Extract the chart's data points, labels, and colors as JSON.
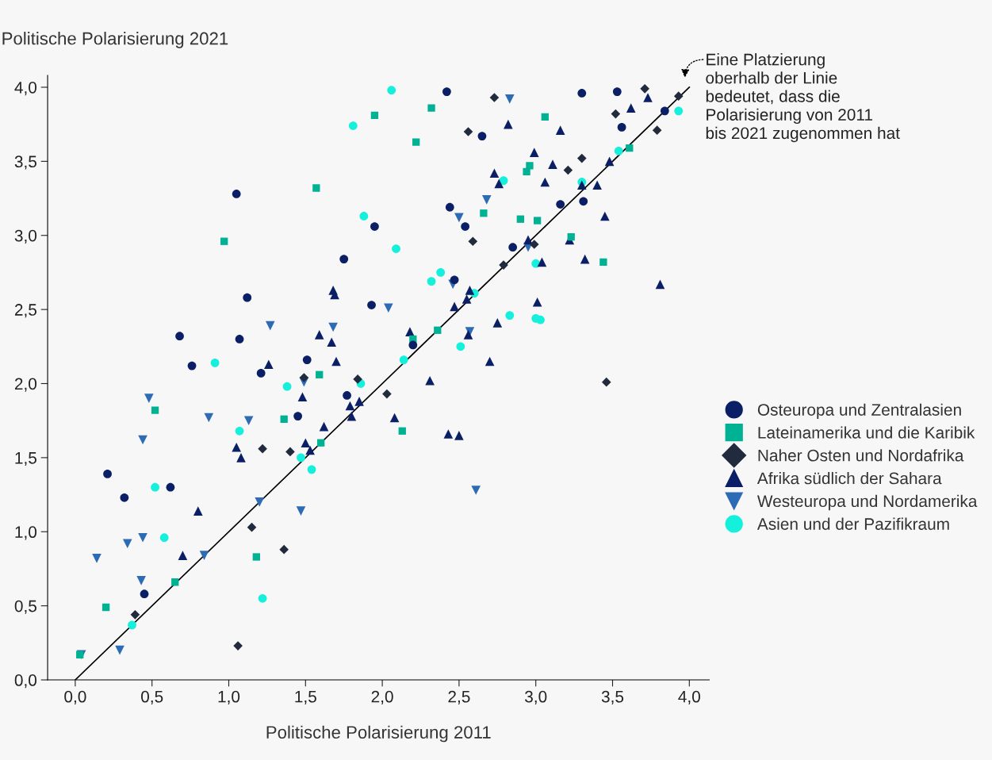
{
  "chart_data": {
    "type": "scatter",
    "xlabel": "Politische Polarisierung 2011",
    "ylabel": "Politische Polarisierung 2021",
    "xlim": [
      -0.18,
      4.13
    ],
    "ylim": [
      0,
      4.08
    ],
    "xticks": [
      {
        "value": 0,
        "label": "0,0"
      },
      {
        "value": 0.5,
        "label": "0,5"
      },
      {
        "value": 1,
        "label": "1,0"
      },
      {
        "value": 1.5,
        "label": "1,5"
      },
      {
        "value": 2,
        "label": "2,0"
      },
      {
        "value": 2.5,
        "label": "2,5"
      },
      {
        "value": 3,
        "label": "3,0"
      },
      {
        "value": 3.5,
        "label": "3,5"
      },
      {
        "value": 4,
        "label": "4,0"
      }
    ],
    "yticks": [
      {
        "value": 0,
        "label": "0,0"
      },
      {
        "value": 0.5,
        "label": "0,5"
      },
      {
        "value": 1,
        "label": "1,0"
      },
      {
        "value": 1.5,
        "label": "1,5"
      },
      {
        "value": 2,
        "label": "2,0"
      },
      {
        "value": 2.5,
        "label": "2,5"
      },
      {
        "value": 3,
        "label": "3,0"
      },
      {
        "value": 3.5,
        "label": "3,5"
      },
      {
        "value": 4,
        "label": "4,0"
      }
    ],
    "grid": false,
    "legend": "right",
    "annotations": [
      "Eine Platzierung\noberhalb der Linie\nbedeutet, dass die\nPolarisierung von 2011\nbis 2021 zugenommen hat"
    ],
    "series": [
      {
        "name": "Osteuropa und Zentralasien",
        "color": "#0b1f66",
        "marker": "circle",
        "x": [
          2.42,
          3.3,
          3.53,
          3.84,
          3.56,
          2.65,
          1.05,
          2.44,
          3.16,
          3.31,
          2.54,
          1.95,
          2.85,
          1.75,
          2.47,
          1.12,
          1.93,
          0.68,
          1.07,
          2.2,
          0.76,
          1.51,
          1.21,
          1.77,
          1.45,
          0.21,
          0.32,
          0.62,
          0.45
        ],
        "values": [
          3.97,
          3.96,
          3.97,
          3.84,
          3.73,
          3.67,
          3.28,
          3.19,
          3.21,
          3.23,
          3.06,
          3.06,
          2.92,
          2.84,
          2.7,
          2.58,
          2.53,
          2.32,
          2.3,
          2.26,
          2.12,
          2.16,
          2.07,
          1.92,
          1.78,
          1.39,
          1.23,
          1.3,
          0.58
        ]
      },
      {
        "name": "Lateinamerika und die Karibik",
        "color": "#00b294",
        "marker": "square",
        "x": [
          2.32,
          1.95,
          2.22,
          3.06,
          1.57,
          2.96,
          2.94,
          0.97,
          2.66,
          2.9,
          3.01,
          3.23,
          3.44,
          2.36,
          2.2,
          1.59,
          1.36,
          0.52,
          2.13,
          1.6,
          1.18,
          0.65,
          0.2,
          0.03,
          3.61
        ],
        "values": [
          3.86,
          3.81,
          3.63,
          3.8,
          3.32,
          3.47,
          3.43,
          2.96,
          3.15,
          3.11,
          3.1,
          2.99,
          2.82,
          2.36,
          2.3,
          2.06,
          1.76,
          1.82,
          1.68,
          1.6,
          0.83,
          0.66,
          0.49,
          0.17,
          3.59
        ]
      },
      {
        "name": "Naher Osten und Nordafrika",
        "color": "#222a3d",
        "marker": "diamond",
        "x": [
          2.73,
          3.71,
          3.93,
          3.52,
          2.56,
          3.79,
          3.3,
          3.21,
          2.59,
          2.79,
          2.99,
          1.84,
          1.49,
          2.03,
          1.22,
          1.4,
          1.15,
          1.36,
          0.39,
          1.06,
          3.46
        ],
        "values": [
          3.93,
          3.99,
          3.94,
          3.82,
          3.7,
          3.71,
          3.52,
          3.44,
          2.96,
          2.8,
          2.94,
          2.03,
          2.04,
          1.93,
          1.56,
          1.54,
          1.03,
          0.88,
          0.44,
          0.23,
          2.01
        ]
      },
      {
        "name": "Afrika südlich der Sahara",
        "color": "#0b1f66",
        "marker": "triangle",
        "x": [
          3.73,
          3.62,
          2.82,
          3.16,
          2.99,
          3.11,
          2.73,
          2.76,
          3.06,
          3.48,
          3.4,
          3.3,
          3.45,
          2.95,
          3.22,
          3.04,
          3.32,
          3.01,
          3.81,
          2.57,
          2.55,
          2.47,
          2.56,
          2.75,
          2.7,
          1.68,
          1.69,
          1.59,
          1.67,
          1.7,
          1.26,
          2.18,
          2.31,
          2.08,
          1.48,
          1.79,
          1.85,
          1.8,
          1.62,
          1.05,
          1.08,
          1.5,
          1.53,
          2.43,
          2.5,
          0.8,
          0.7
        ],
        "values": [
          3.93,
          3.86,
          3.75,
          3.71,
          3.56,
          3.48,
          3.42,
          3.35,
          3.36,
          3.5,
          3.34,
          3.34,
          3.13,
          2.97,
          2.97,
          2.82,
          2.84,
          2.55,
          2.67,
          2.63,
          2.57,
          2.52,
          2.33,
          2.41,
          2.15,
          2.63,
          2.6,
          2.33,
          2.28,
          2.15,
          2.13,
          2.35,
          2.02,
          1.77,
          1.91,
          1.85,
          1.88,
          1.78,
          1.71,
          1.57,
          1.5,
          1.6,
          1.55,
          1.66,
          1.65,
          1.14,
          0.84
        ]
      },
      {
        "name": "Westeuropa und Nordamerika",
        "color": "#2e6bb5",
        "marker": "triangle_down",
        "x": [
          2.83,
          2.68,
          2.5,
          2.95,
          2.46,
          2.04,
          1.27,
          1.68,
          2.57,
          1.49,
          0.48,
          0.87,
          1.13,
          0.44,
          1.2,
          1.47,
          0.34,
          0.44,
          0.14,
          0.43,
          0.29,
          2.61,
          0.84,
          0.04
        ],
        "values": [
          3.92,
          3.24,
          3.12,
          2.92,
          2.67,
          2.51,
          2.39,
          2.38,
          2.35,
          2.01,
          1.9,
          1.77,
          1.75,
          1.62,
          1.2,
          1.14,
          0.92,
          0.96,
          0.82,
          0.67,
          0.2,
          1.28,
          0.84,
          0.17
        ]
      },
      {
        "name": "Asien und der Pazifikraum",
        "color": "#14f0dc",
        "marker": "circle",
        "x": [
          2.06,
          1.81,
          3.93,
          3.54,
          2.79,
          3.3,
          1.88,
          2.09,
          3.0,
          2.38,
          2.32,
          2.6,
          2.83,
          3.0,
          3.03,
          2.51,
          2.14,
          1.86,
          0.91,
          1.38,
          1.07,
          0.52,
          0.58,
          1.47,
          1.54,
          1.22,
          0.37
        ],
        "values": [
          3.98,
          3.74,
          3.84,
          3.57,
          3.37,
          3.36,
          3.13,
          2.91,
          2.81,
          2.75,
          2.69,
          2.61,
          2.46,
          2.44,
          2.43,
          2.25,
          2.16,
          2.0,
          2.14,
          1.98,
          1.68,
          1.3,
          0.96,
          1.5,
          1.42,
          0.55,
          0.37
        ]
      },
      {
        "type": "line",
        "color": "#000000",
        "line_style": "solid",
        "x": [
          0,
          4
        ],
        "values": [
          0,
          4
        ]
      }
    ]
  }
}
